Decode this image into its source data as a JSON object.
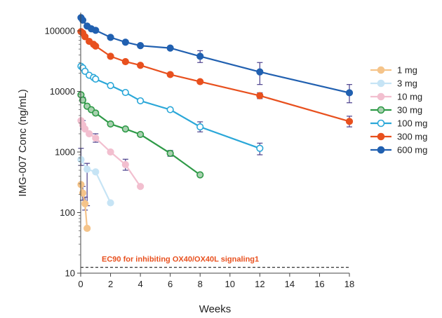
{
  "chart_data": {
    "type": "line",
    "title": "",
    "xlabel": "Weeks",
    "ylabel": "IMG-007 Conc (ng/mL)",
    "yscale": "log",
    "xlim": [
      0,
      18
    ],
    "ylim": [
      10,
      200000
    ],
    "x_ticks": [
      0,
      2,
      4,
      6,
      8,
      10,
      12,
      14,
      16,
      18
    ],
    "x_tick_labels": [
      "0",
      "2",
      "4",
      "6",
      "8",
      "10",
      "12",
      "14",
      "16",
      "18"
    ],
    "y_ticks": [
      10,
      100,
      1000,
      10000,
      100000
    ],
    "y_tick_labels": [
      "10",
      "100",
      "1000",
      "10000",
      "100000"
    ],
    "legend_position": "right",
    "reference_line": {
      "y": 12.5,
      "style": "dashed",
      "color": "#333333",
      "label": "EC90 for inhibiting OX40/OX40L signaling1",
      "label_color": "#e8501e"
    },
    "series": [
      {
        "name": "1 mg",
        "color": "#f5c48a",
        "fill": "#f5c48a",
        "stroke": "#f5c48a",
        "marker_fill": "#f5c48a",
        "points": [
          {
            "x": 0.02,
            "y": 290
          },
          {
            "x": 0.14,
            "y": 210
          },
          {
            "x": 0.29,
            "y": 140
          },
          {
            "x": 0.43,
            "y": 55
          }
        ]
      },
      {
        "name": "3 mg",
        "color": "#c6e4f5",
        "fill": "#c6e4f5",
        "stroke": "#c6e4f5",
        "marker_fill": "#c6e4f5",
        "points": [
          {
            "x": 0.02,
            "y": 750
          },
          {
            "x": 0.43,
            "y": 520
          },
          {
            "x": 1.0,
            "y": 470
          },
          {
            "x": 2.0,
            "y": 145
          }
        ]
      },
      {
        "name": "10 mg",
        "color": "#f2bfcf",
        "fill": "#f2bfcf",
        "stroke": "#f2bfcf",
        "marker_fill": "#f2bfcf",
        "points": [
          {
            "x": 0.02,
            "y": 3300
          },
          {
            "x": 0.14,
            "y": 2800
          },
          {
            "x": 0.29,
            "y": 2400
          },
          {
            "x": 0.57,
            "y": 2000
          },
          {
            "x": 1.0,
            "y": 1700
          },
          {
            "x": 2.0,
            "y": 1000
          },
          {
            "x": 3.0,
            "y": 620
          },
          {
            "x": 4.0,
            "y": 270
          }
        ]
      },
      {
        "name": "30 mg",
        "color": "#2e9a47",
        "fill": "#a9d1b0",
        "stroke": "#2e9a47",
        "marker_fill": "#a9d1b0",
        "points": [
          {
            "x": 0.02,
            "y": 8800
          },
          {
            "x": 0.14,
            "y": 7200
          },
          {
            "x": 0.43,
            "y": 5700
          },
          {
            "x": 0.71,
            "y": 5000
          },
          {
            "x": 1.0,
            "y": 4400
          },
          {
            "x": 2.0,
            "y": 2900
          },
          {
            "x": 3.0,
            "y": 2400
          },
          {
            "x": 4.0,
            "y": 1950
          },
          {
            "x": 6.0,
            "y": 950
          },
          {
            "x": 8.0,
            "y": 420
          }
        ]
      },
      {
        "name": "100 mg",
        "color": "#2aa7d8",
        "fill": "#ffffff",
        "stroke": "#2aa7d8",
        "marker_fill": "#ffffff",
        "points": [
          {
            "x": 0.02,
            "y": 26000
          },
          {
            "x": 0.14,
            "y": 24500
          },
          {
            "x": 0.29,
            "y": 21500
          },
          {
            "x": 0.57,
            "y": 18500
          },
          {
            "x": 0.86,
            "y": 17000
          },
          {
            "x": 1.0,
            "y": 16000
          },
          {
            "x": 2.0,
            "y": 12500
          },
          {
            "x": 3.0,
            "y": 9600
          },
          {
            "x": 4.0,
            "y": 7000
          },
          {
            "x": 6.0,
            "y": 5000
          },
          {
            "x": 8.0,
            "y": 2600
          },
          {
            "x": 12.0,
            "y": 1150
          }
        ]
      },
      {
        "name": "300 mg",
        "color": "#e8501e",
        "fill": "#e8501e",
        "stroke": "#e8501e",
        "marker_fill": "#e8501e",
        "points": [
          {
            "x": 0.02,
            "y": 97000
          },
          {
            "x": 0.14,
            "y": 92000
          },
          {
            "x": 0.29,
            "y": 80000
          },
          {
            "x": 0.57,
            "y": 67000
          },
          {
            "x": 0.86,
            "y": 60000
          },
          {
            "x": 1.0,
            "y": 56000
          },
          {
            "x": 2.0,
            "y": 38000
          },
          {
            "x": 3.0,
            "y": 31000
          },
          {
            "x": 4.0,
            "y": 27000
          },
          {
            "x": 6.0,
            "y": 19000
          },
          {
            "x": 8.0,
            "y": 14500
          },
          {
            "x": 12.0,
            "y": 8500
          },
          {
            "x": 18.0,
            "y": 3200
          }
        ]
      },
      {
        "name": "600 mg",
        "color": "#2160b0",
        "fill": "#2160b0",
        "stroke": "#2160b0",
        "marker_fill": "#2160b0",
        "points": [
          {
            "x": 0.02,
            "y": 165000
          },
          {
            "x": 0.14,
            "y": 150000
          },
          {
            "x": 0.43,
            "y": 120000
          },
          {
            "x": 0.71,
            "y": 108000
          },
          {
            "x": 1.0,
            "y": 102000
          },
          {
            "x": 2.0,
            "y": 78000
          },
          {
            "x": 3.0,
            "y": 65000
          },
          {
            "x": 4.0,
            "y": 57000
          },
          {
            "x": 6.0,
            "y": 52000
          },
          {
            "x": 8.0,
            "y": 38000
          },
          {
            "x": 12.0,
            "y": 21000
          },
          {
            "x": 18.0,
            "y": 9500
          }
        ]
      }
    ],
    "error_bars": [
      {
        "series": "1 mg",
        "x": 0.14,
        "low": 160,
        "high": 270
      },
      {
        "series": "1 mg",
        "x": 0.29,
        "low": 110,
        "high": 180
      },
      {
        "series": "3 mg",
        "x": 0.43,
        "low": 130,
        "high": 650
      },
      {
        "series": "3 mg",
        "x": 0.02,
        "low": 600,
        "high": 1150
      },
      {
        "series": "10 mg",
        "x": 0.14,
        "low": 2400,
        "high": 3300
      },
      {
        "series": "10 mg",
        "x": 1.0,
        "low": 1450,
        "high": 2000
      },
      {
        "series": "10 mg",
        "x": 3.0,
        "low": 500,
        "high": 760
      },
      {
        "series": "30 mg",
        "x": 0.14,
        "low": 6500,
        "high": 8000
      },
      {
        "series": "30 mg",
        "x": 6.0,
        "low": 850,
        "high": 1060
      },
      {
        "series": "100 mg",
        "x": 8.0,
        "low": 2150,
        "high": 3150
      },
      {
        "series": "100 mg",
        "x": 12.0,
        "low": 900,
        "high": 1400
      },
      {
        "series": "300 mg",
        "x": 12.0,
        "low": 7600,
        "high": 9500
      },
      {
        "series": "300 mg",
        "x": 18.0,
        "low": 2600,
        "high": 3900
      },
      {
        "series": "600 mg",
        "x": 8.0,
        "low": 30000,
        "high": 47000
      },
      {
        "series": "600 mg",
        "x": 12.0,
        "low": 13000,
        "high": 30000
      },
      {
        "series": "600 mg",
        "x": 18.0,
        "low": 6500,
        "high": 13000
      }
    ]
  }
}
